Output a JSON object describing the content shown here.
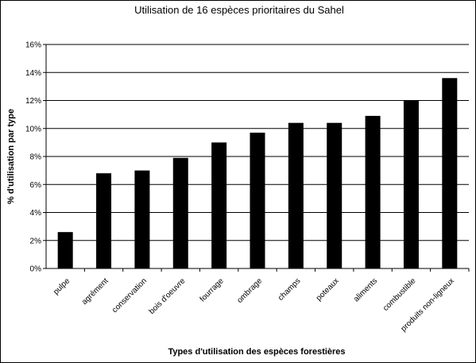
{
  "chart_data": {
    "type": "bar",
    "title": "Utilisation de 16 espèces prioritaires du Sahel",
    "xlabel": "Types d'utilisation des espèces forestières",
    "ylabel": "% d'utilisation par type",
    "categories": [
      "pulpe",
      "agrément",
      "conservation",
      "bois d'oeuvre",
      "fourrage",
      "ombrage",
      "champs",
      "poteaux",
      "aliments",
      "combustible",
      "produits non-ligneux"
    ],
    "values": [
      2.6,
      6.8,
      7.0,
      7.9,
      9.0,
      9.7,
      10.4,
      10.4,
      10.9,
      12.0,
      13.6
    ],
    "ylim": [
      0,
      16
    ],
    "yticks": [
      0,
      2,
      4,
      6,
      8,
      10,
      12,
      14,
      16
    ],
    "tick_suffix": "%",
    "grid": true,
    "bar_color": "#000000",
    "grid_color": "#000000"
  }
}
